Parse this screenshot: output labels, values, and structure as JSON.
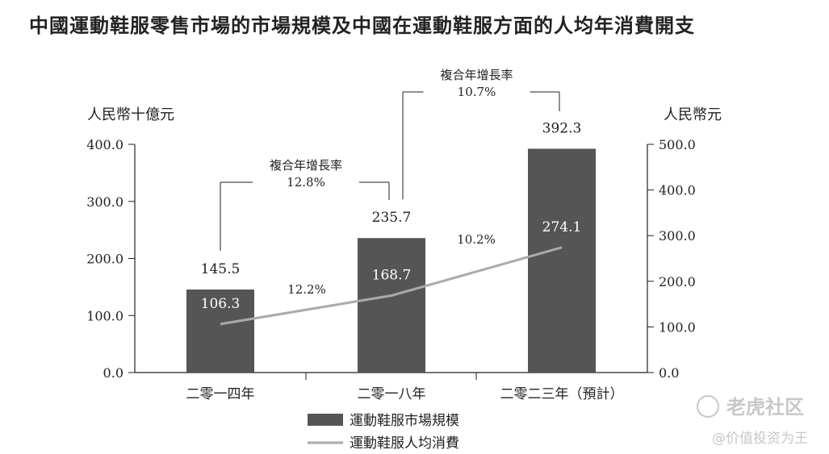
{
  "title": "中國運動鞋服零售市場的市場規模及中國在運動鞋服方面的人均年消費開支",
  "chart_data": {
    "type": "bar",
    "categories": [
      "二零一四年",
      "二零一八年",
      "二零二三年（預計）"
    ],
    "series": [
      {
        "name": "運動鞋服市場規模",
        "type": "bar",
        "axis": "left",
        "color": "#555555",
        "values": [
          145.5,
          235.7,
          392.3
        ]
      },
      {
        "name": "運動鞋服人均消費",
        "type": "line",
        "axis": "right",
        "color": "#aaaaaa",
        "values": [
          106.3,
          168.7,
          274.1
        ]
      }
    ],
    "y_left": {
      "label": "人民幣十億元",
      "ylim": [
        0,
        400
      ],
      "ticks": [
        "0.0",
        "100.0",
        "200.0",
        "300.0",
        "400.0"
      ]
    },
    "y_right": {
      "label": "人民幣元",
      "ylim": [
        0,
        500
      ],
      "ticks": [
        "0.0",
        "100.0",
        "200.0",
        "300.0",
        "400.0",
        "500.0"
      ]
    },
    "cagr_line": [
      {
        "from": 0,
        "to": 1,
        "text": "12.2%"
      },
      {
        "from": 1,
        "to": 2,
        "text": "10.2%"
      }
    ],
    "cagr_bar": [
      {
        "from": 0,
        "to": 1,
        "label": "複合年增長率",
        "text": "12.8%"
      },
      {
        "from": 1,
        "to": 2,
        "label": "複合年增長率",
        "text": "10.7%"
      }
    ],
    "grid": false,
    "legend": "bottom-center"
  },
  "watermark": {
    "icon": "tiger-logo-icon",
    "brand": "老虎社区",
    "sub": "@价值投资为王"
  }
}
